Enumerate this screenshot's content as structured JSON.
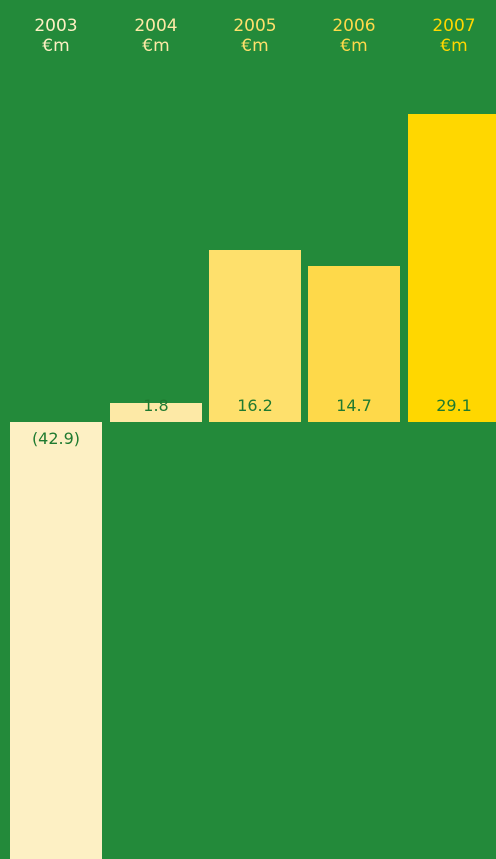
{
  "chart_data": {
    "type": "bar",
    "title": "",
    "xlabel": "",
    "ylabel": "",
    "unit": "€m",
    "categories": [
      "2003",
      "2004",
      "2005",
      "2006",
      "2007"
    ],
    "values": [
      -42.9,
      1.8,
      16.2,
      14.7,
      29.1
    ],
    "value_labels": [
      "(42.9)",
      "1.8",
      "16.2",
      "14.7",
      "29.1"
    ],
    "bar_colors": [
      "#fdf0c4",
      "#fde9a6",
      "#fee06c",
      "#fed94a",
      "#ffd700"
    ],
    "header_colors": [
      "#fdf0c4",
      "#fde9a6",
      "#fee06c",
      "#fed94a",
      "#ffd700"
    ],
    "value_label_color": "#1f7a30",
    "background": "#238a3a",
    "grid": false,
    "legend": "none"
  }
}
